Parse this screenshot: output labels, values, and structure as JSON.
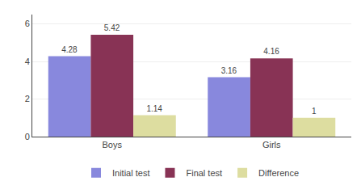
{
  "chart_data": {
    "type": "bar",
    "categories": [
      "Boys",
      "Girls"
    ],
    "series": [
      {
        "name": "Initial test",
        "color": "#8888DD",
        "values": [
          4.28,
          3.16
        ]
      },
      {
        "name": "Final test",
        "color": "#883355",
        "values": [
          5.42,
          4.16
        ]
      },
      {
        "name": "Difference",
        "color": "#DDDDA0",
        "values": [
          1.14,
          1
        ]
      }
    ],
    "ylim": [
      0,
      6.5
    ],
    "yticks": [
      0,
      2,
      4,
      6
    ],
    "grid": true,
    "legend": "bottom",
    "data_labels": true
  }
}
